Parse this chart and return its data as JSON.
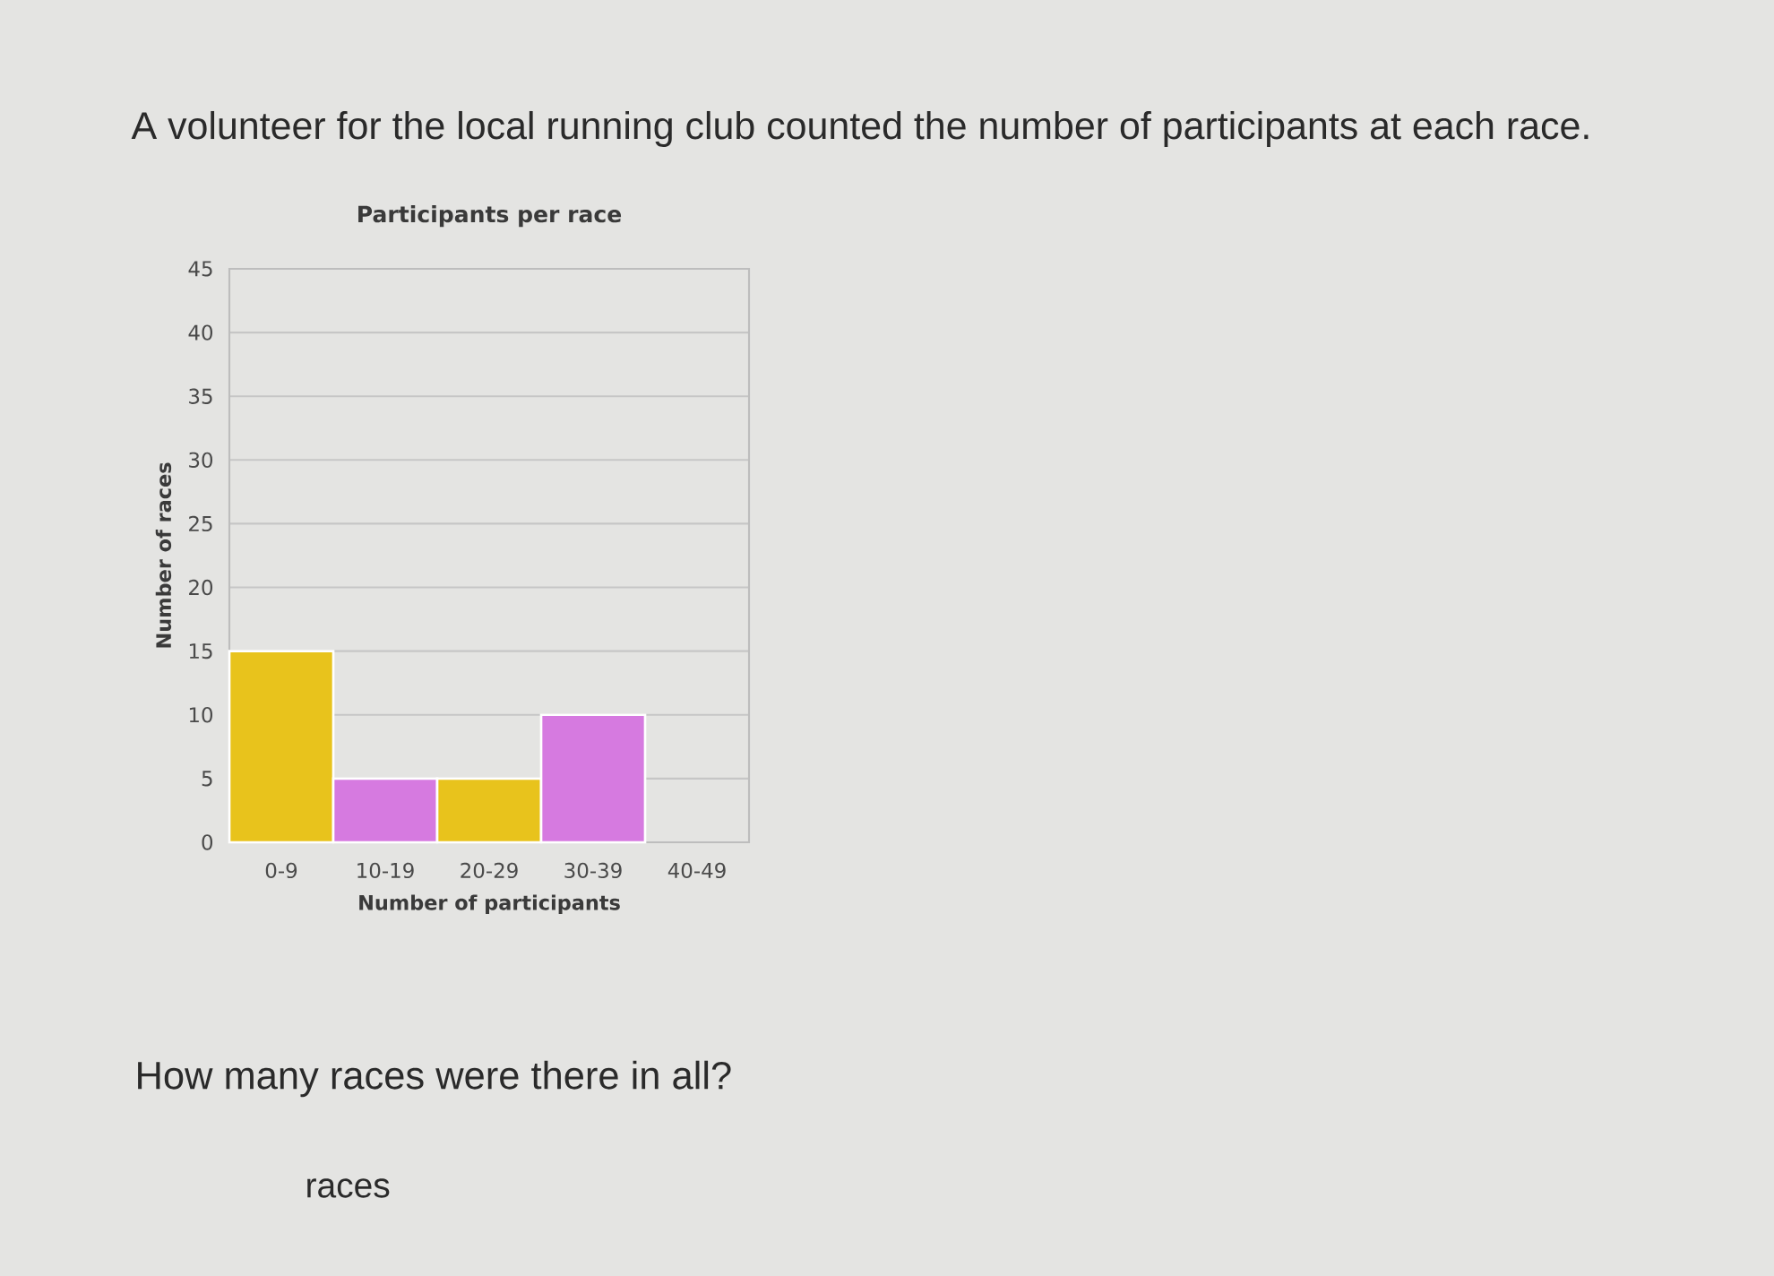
{
  "chart_data": {
    "type": "bar",
    "title": "Participants per race",
    "xlabel": "Number of participants",
    "ylabel": "Number of races",
    "categories": [
      "0-9",
      "10-19",
      "20-29",
      "30-39",
      "40-49"
    ],
    "values": [
      15,
      5,
      5,
      10,
      0
    ],
    "colors": [
      "#e8c31c",
      "#d67ae0",
      "#e8c31c",
      "#d67ae0",
      "#e8c31c"
    ],
    "ylim": [
      0,
      45
    ],
    "yticks": [
      0,
      5,
      10,
      15,
      20,
      25,
      30,
      35,
      40,
      45
    ],
    "grid": "y",
    "annotations": [
      "A volunteer for the local running club counted the number of participants at each race.",
      "How many races were there in all?",
      "races"
    ]
  }
}
